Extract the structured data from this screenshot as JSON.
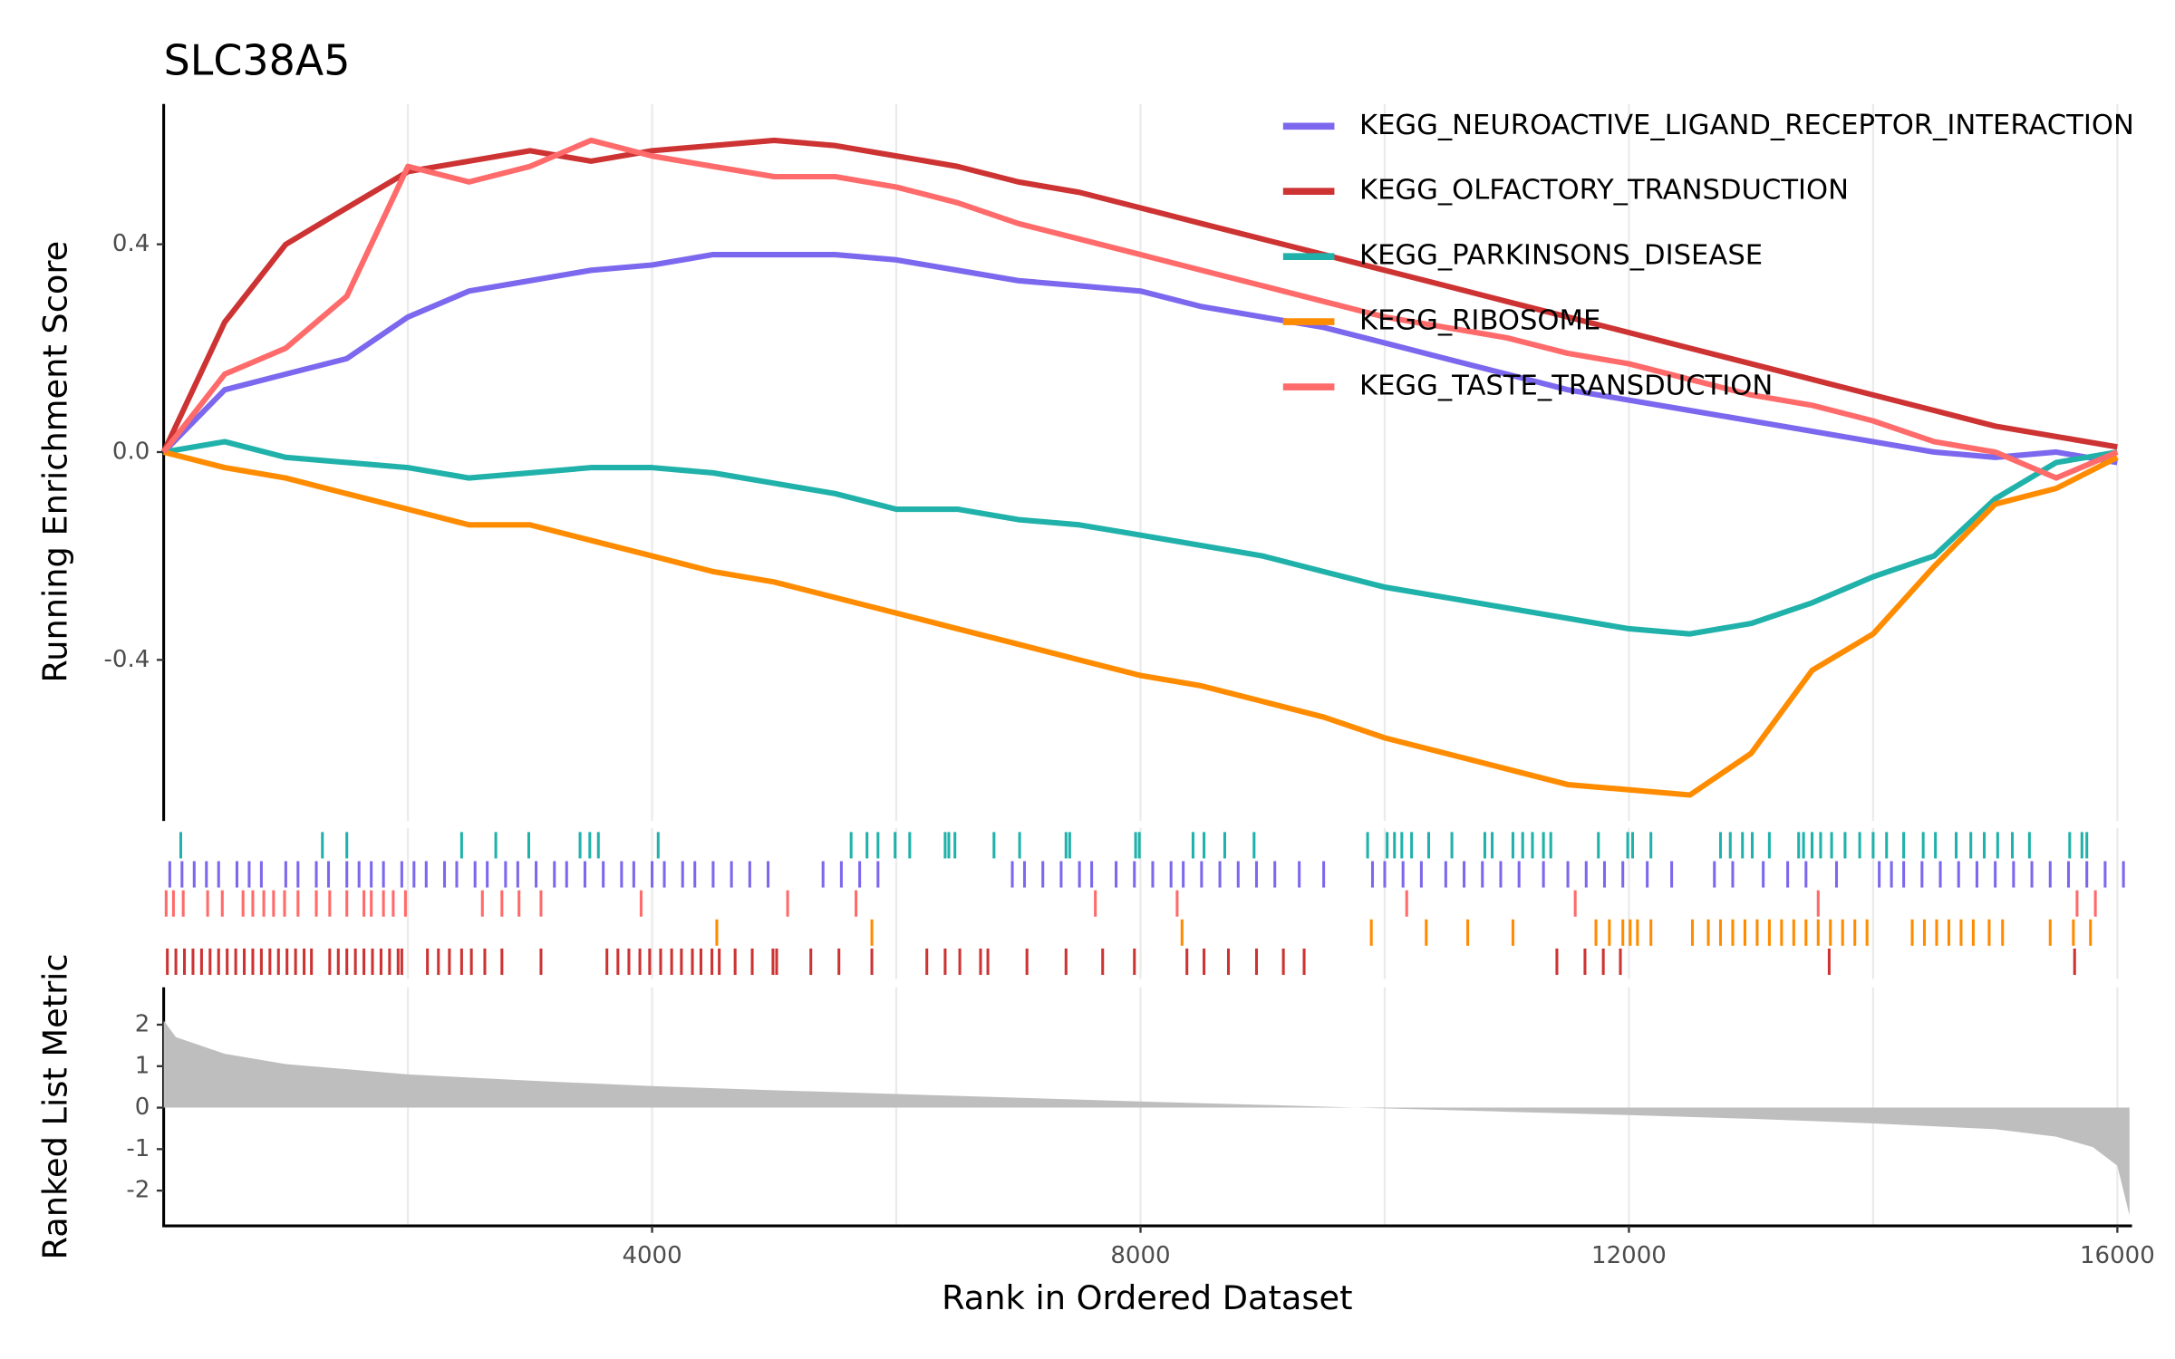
{
  "chart_data": [
    {
      "type": "line",
      "title": "SLC38A5",
      "y_label": "Running Enrichment Score",
      "xlim": [
        0,
        16120
      ],
      "ylim": [
        -0.71,
        0.67
      ],
      "yticks": [
        0.4,
        {
          "value": 0,
          "label": "0.0"
        },
        -0.4
      ],
      "grid_x": [
        2000,
        4000,
        6000,
        8000,
        10000,
        12000,
        14000,
        16000
      ],
      "x": [
        0,
        500,
        1000,
        1500,
        2000,
        2500,
        3000,
        3500,
        4000,
        4500,
        5000,
        5500,
        6000,
        6500,
        7000,
        7500,
        8000,
        8500,
        9000,
        9500,
        10000,
        10500,
        11000,
        11500,
        12000,
        12500,
        13000,
        13500,
        14000,
        14500,
        15000,
        15500,
        16000
      ],
      "series": [
        {
          "name": "KEGG_NEUROACTIVE_LIGAND_RECEPTOR_INTERACTION",
          "color": "#7B68EE",
          "values": [
            0,
            0.12,
            0.15,
            0.18,
            0.26,
            0.31,
            0.33,
            0.35,
            0.36,
            0.38,
            0.38,
            0.38,
            0.37,
            0.35,
            0.33,
            0.32,
            0.31,
            0.28,
            0.26,
            0.24,
            0.21,
            0.18,
            0.15,
            0.12,
            0.1,
            0.08,
            0.06,
            0.04,
            0.02,
            0.0,
            -0.01,
            0.0,
            -0.02
          ],
          "hits": [
            50,
            150,
            250,
            350,
            450,
            600,
            700,
            800,
            1000,
            1100,
            1250,
            1350,
            1500,
            1600,
            1700,
            1800,
            1950,
            2050,
            2150,
            2300,
            2400,
            2550,
            2650,
            2800,
            2900,
            3050,
            3200,
            3300,
            3450,
            3600,
            3750,
            3850,
            4000,
            4100,
            4250,
            4350,
            4500,
            4650,
            4800,
            4950,
            5400,
            5550,
            5700,
            5850,
            6950,
            7050,
            7200,
            7350,
            7500,
            7600,
            7800,
            7950,
            8100,
            8250,
            8350,
            8500,
            8650,
            8800,
            8950,
            9100,
            9300,
            9500,
            9900,
            10000,
            10150,
            10300,
            10500,
            10650,
            10800,
            10950,
            11100,
            11300,
            11500,
            11650,
            11800,
            11950,
            12150,
            12350,
            12700,
            12850,
            13100,
            13300,
            13450,
            13700,
            14050,
            14150,
            14250,
            14400,
            14550,
            14700,
            14850,
            15000,
            15150,
            15300,
            15450,
            15600,
            15750,
            15900,
            16050
          ]
        },
        {
          "name": "KEGG_OLFACTORY_TRANSDUCTION",
          "color": "#CD3333",
          "values": [
            0,
            0.25,
            0.4,
            0.47,
            0.54,
            0.56,
            0.58,
            0.56,
            0.58,
            0.59,
            0.6,
            0.59,
            0.57,
            0.55,
            0.52,
            0.5,
            0.47,
            0.44,
            0.41,
            0.38,
            0.35,
            0.32,
            0.29,
            0.26,
            0.23,
            0.2,
            0.17,
            0.14,
            0.11,
            0.08,
            0.05,
            0.03,
            0.01
          ],
          "hits": [
            30,
            100,
            170,
            240,
            310,
            380,
            450,
            520,
            590,
            660,
            730,
            800,
            870,
            940,
            1010,
            1080,
            1150,
            1210,
            1360,
            1430,
            1500,
            1570,
            1640,
            1710,
            1780,
            1850,
            1920,
            1950,
            2160,
            2250,
            2340,
            2440,
            2520,
            2630,
            2770,
            3090,
            3630,
            3720,
            3810,
            3900,
            3980,
            4070,
            4160,
            4240,
            4330,
            4400,
            4490,
            4550,
            4680,
            4820,
            4990,
            5020,
            5300,
            5530,
            5800,
            6250,
            6400,
            6520,
            6690,
            6750,
            7070,
            7390,
            7690,
            7950,
            8380,
            8520,
            8720,
            8950,
            9170,
            9340,
            11410,
            11640,
            11790,
            11930,
            13640,
            15650
          ]
        },
        {
          "name": "KEGG_PARKINSONS_DISEASE",
          "color": "#20B2AA",
          "values": [
            0,
            0.02,
            -0.01,
            -0.02,
            -0.03,
            -0.05,
            -0.04,
            -0.03,
            -0.03,
            -0.04,
            -0.06,
            -0.08,
            -0.11,
            -0.11,
            -0.13,
            -0.14,
            -0.16,
            -0.18,
            -0.2,
            -0.23,
            -0.26,
            -0.28,
            -0.3,
            -0.32,
            -0.34,
            -0.35,
            -0.33,
            -0.29,
            -0.24,
            -0.2,
            -0.09,
            -0.02,
            0.0
          ],
          "hits": [
            140,
            1300,
            1500,
            2440,
            2720,
            2990,
            3410,
            3490,
            3560,
            4050,
            5630,
            5760,
            5850,
            5990,
            6110,
            6400,
            6430,
            6480,
            6800,
            7010,
            7390,
            7420,
            7960,
            7990,
            8430,
            8520,
            8690,
            8930,
            9860,
            10020,
            10080,
            10140,
            10220,
            10360,
            10550,
            10820,
            10880,
            11050,
            11130,
            11210,
            11300,
            11360,
            11750,
            11990,
            12030,
            12180,
            12750,
            12830,
            12930,
            13010,
            13150,
            13390,
            13430,
            13500,
            13570,
            13660,
            13770,
            13890,
            14000,
            14110,
            14250,
            14410,
            14510,
            14680,
            14800,
            14910,
            15020,
            15140,
            15280,
            15610,
            15710,
            15750
          ]
        },
        {
          "name": "KEGG_RIBOSOME",
          "color": "#FF8C00",
          "values": [
            0,
            -0.03,
            -0.05,
            -0.08,
            -0.11,
            -0.14,
            -0.14,
            -0.17,
            -0.2,
            -0.23,
            -0.25,
            -0.28,
            -0.31,
            -0.34,
            -0.37,
            -0.4,
            -0.43,
            -0.45,
            -0.48,
            -0.51,
            -0.55,
            -0.58,
            -0.61,
            -0.64,
            -0.65,
            -0.66,
            -0.58,
            -0.42,
            -0.35,
            -0.22,
            -0.1,
            -0.07,
            -0.01
          ],
          "hits": [
            4530,
            5800,
            8340,
            9890,
            10340,
            10680,
            11050,
            11730,
            11840,
            11950,
            12010,
            12070,
            12180,
            12520,
            12650,
            12750,
            12850,
            12950,
            13050,
            13150,
            13250,
            13350,
            13450,
            13550,
            13650,
            13750,
            13850,
            13950,
            14320,
            14420,
            14520,
            14620,
            14720,
            14820,
            14950,
            15060,
            15450,
            15640,
            15780
          ]
        },
        {
          "name": "KEGG_TASTE_TRANSDUCTION",
          "color": "#FF6A6A",
          "values": [
            0,
            0.15,
            0.2,
            0.3,
            0.55,
            0.52,
            0.55,
            0.6,
            0.57,
            0.55,
            0.53,
            0.53,
            0.51,
            0.48,
            0.44,
            0.41,
            0.38,
            0.35,
            0.32,
            0.29,
            0.26,
            0.24,
            0.22,
            0.19,
            0.17,
            0.14,
            0.11,
            0.09,
            0.06,
            0.02,
            0.0,
            -0.05,
            0.0
          ],
          "hits": [
            20,
            80,
            160,
            360,
            480,
            650,
            730,
            820,
            900,
            990,
            1100,
            1250,
            1360,
            1500,
            1640,
            1700,
            1800,
            1880,
            1980,
            2610,
            2770,
            2910,
            3090,
            3910,
            5110,
            5670,
            7630,
            8300,
            10180,
            11560,
            13550,
            15670,
            15820
          ]
        }
      ]
    },
    {
      "type": "area",
      "x_label": "Rank in Ordered Dataset",
      "y_label": "Ranked List Metric",
      "color": "#bebebe",
      "xlim": [
        0,
        16120
      ],
      "ylim": [
        -2.85,
        2.9
      ],
      "xticks": [
        4000,
        8000,
        12000,
        16000
      ],
      "minor_grid_x": [
        2000,
        6000,
        10000,
        14000
      ],
      "yticks": [
        2,
        1,
        0,
        -1,
        -2
      ],
      "x": [
        0,
        100,
        500,
        1000,
        2000,
        3000,
        4000,
        5000,
        6000,
        7000,
        8000,
        9000,
        10000,
        11000,
        12000,
        13000,
        14000,
        15000,
        15500,
        15800,
        16000,
        16100
      ],
      "values": [
        2.1,
        1.7,
        1.3,
        1.05,
        0.8,
        0.65,
        0.52,
        0.42,
        0.33,
        0.24,
        0.15,
        0.07,
        -0.02,
        -0.1,
        -0.18,
        -0.27,
        -0.38,
        -0.52,
        -0.7,
        -0.95,
        -1.4,
        -2.6
      ]
    }
  ]
}
